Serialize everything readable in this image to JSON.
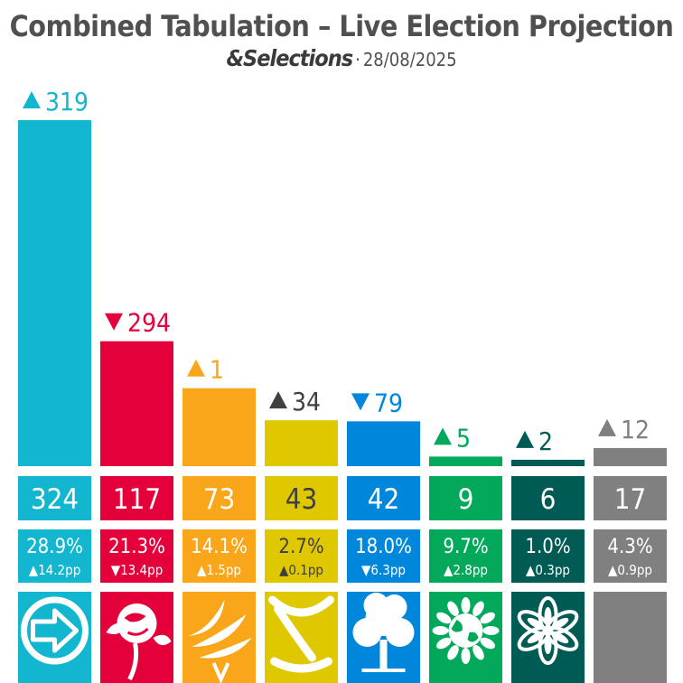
{
  "title": "Combined Tabulation – Live Election Projection",
  "subtitle": {
    "brand": "&Selections",
    "date": "28/08/2025"
  },
  "chart_data": {
    "type": "bar",
    "categories": [
      "",
      "",
      "",
      "",
      "",
      "",
      "",
      ""
    ],
    "values": [
      324,
      117,
      73,
      43,
      42,
      9,
      6,
      17
    ],
    "seat_change": [
      {
        "dir": "up",
        "value": "319"
      },
      {
        "dir": "down",
        "value": "294"
      },
      {
        "dir": "up",
        "value": "1"
      },
      {
        "dir": "up",
        "value": "34"
      },
      {
        "dir": "down",
        "value": "79"
      },
      {
        "dir": "up",
        "value": "5"
      },
      {
        "dir": "up",
        "value": "2"
      },
      {
        "dir": "up",
        "value": "12"
      }
    ],
    "vote_share": [
      "28.9%",
      "21.3%",
      "14.1%",
      "2.7%",
      "18.0%",
      "9.7%",
      "1.0%",
      "4.3%"
    ],
    "vote_change": [
      {
        "dir": "up",
        "value": "14.2pp"
      },
      {
        "dir": "down",
        "value": "13.4pp"
      },
      {
        "dir": "up",
        "value": "1.5pp"
      },
      {
        "dir": "up",
        "value": "0.1pp"
      },
      {
        "dir": "down",
        "value": "6.3pp"
      },
      {
        "dir": "up",
        "value": "2.8pp"
      },
      {
        "dir": "up",
        "value": "0.3pp"
      },
      {
        "dir": "up",
        "value": "0.9pp"
      }
    ],
    "colors": [
      "#12B6CF",
      "#E4003B",
      "#FAA61A",
      "#E0C800",
      "#0087DC",
      "#02A95B",
      "#005B54",
      "#808080"
    ],
    "label_colors": [
      "#12B6CF",
      "#E4003B",
      "#FAA61A",
      "#404040",
      "#0087DC",
      "#02A95B",
      "#005B54",
      "#808080"
    ],
    "text_colors": [
      "#ffffff",
      "#ffffff",
      "#ffffff",
      "#404040",
      "#ffffff",
      "#ffffff",
      "#ffffff",
      "#ffffff"
    ],
    "icons": [
      "arrow-logo-icon",
      "rose-logo-icon",
      "bird-logo-icon",
      "saltire-logo-icon",
      "tree-logo-icon",
      "earth-logo-icon",
      "flower-logo-icon",
      "blank-logo-icon"
    ],
    "ylim": [
      0,
      324
    ],
    "grid": false,
    "legend": "none"
  }
}
